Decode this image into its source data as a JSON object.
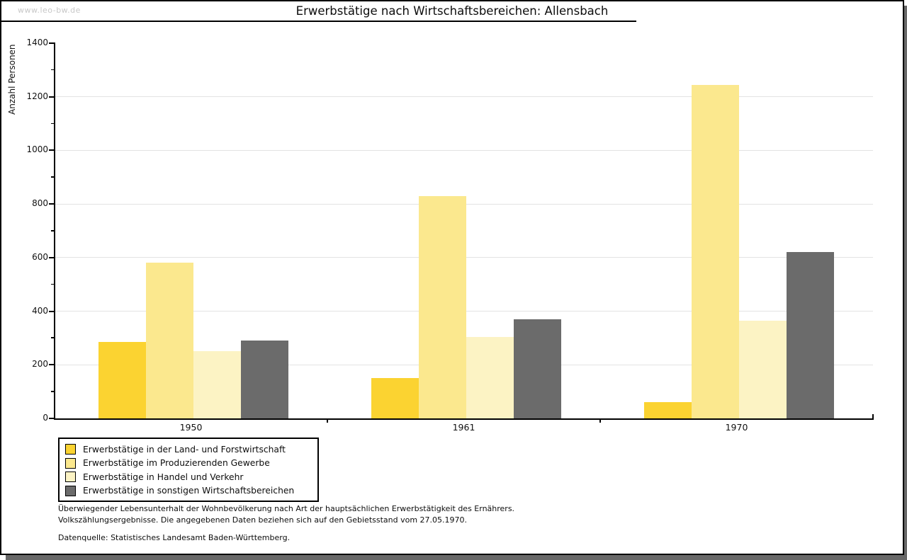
{
  "page": {
    "watermark": "www.leo-bw.de",
    "title": "Erwerbstätige nach Wirtschaftsbereichen: Allensbach"
  },
  "chart_data": {
    "type": "bar",
    "title": "Erwerbstätige nach Wirtschaftsbereichen: Allensbach",
    "ylabel": "Anzahl Personen",
    "xlabel": "",
    "categories": [
      "1950",
      "1961",
      "1970"
    ],
    "series": [
      {
        "name": "Erwerbstätige in der Land- und Forstwirtschaft",
        "color": "#fbd331",
        "values": [
          285,
          150,
          60
        ]
      },
      {
        "name": "Erwerbstätige im Produzierenden Gewerbe",
        "color": "#fbe88e",
        "values": [
          580,
          830,
          1245
        ]
      },
      {
        "name": "Erwerbstätige in Handel und Verkehr",
        "color": "#fcf3c4",
        "values": [
          250,
          305,
          365
        ]
      },
      {
        "name": "Erwerbstätige in sonstigen Wirtschaftsbereichen",
        "color": "#6b6b6b",
        "values": [
          290,
          370,
          620
        ]
      }
    ],
    "ylim": [
      0,
      1400
    ],
    "ytick_step": 200,
    "yminor_step": 100,
    "grid": true,
    "legend_position": "bottom-left"
  },
  "footer": {
    "note_line1": "Überwiegender Lebensunterhalt der Wohnbevölkerung nach Art der hauptsächlichen Erwerbstätigkeit des Ernährers.",
    "note_line2": "Volkszählungsergebnisse. Die angegebenen Daten beziehen sich auf den Gebietsstand vom 27.05.1970.",
    "source": "Datenquelle: Statistisches Landesamt Baden-Württemberg."
  },
  "colors": {
    "axis": "#000000",
    "gridline": "#e3e3e3",
    "watermark": "#c8c8c8",
    "shadow": "#686868",
    "background": "#ffffff"
  }
}
